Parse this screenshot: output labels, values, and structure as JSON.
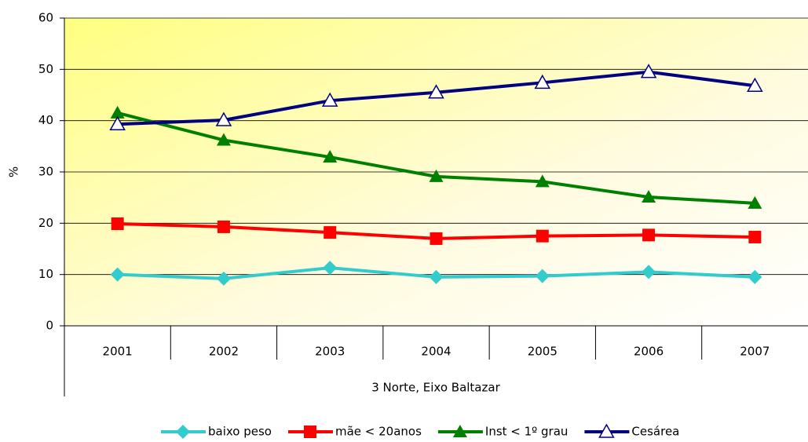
{
  "chart_data": {
    "type": "line",
    "ylabel": "%",
    "xlabel": "3 Norte, Eixo Baltazar",
    "categories": [
      "2001",
      "2002",
      "2003",
      "2004",
      "2005",
      "2006",
      "2007"
    ],
    "series": [
      {
        "name": "baixo peso",
        "color": "#33cccc",
        "marker": "diamond",
        "values": [
          10,
          9.2,
          11.3,
          9.5,
          9.7,
          10.5,
          9.5
        ]
      },
      {
        "name": "mãe < 20anos",
        "color": "#ff0000",
        "marker": "square",
        "values": [
          19.9,
          19.3,
          18.2,
          17,
          17.5,
          17.7,
          17.3
        ]
      },
      {
        "name": "Inst < 1º grau",
        "color": "#008000",
        "marker": "triangle",
        "values": [
          41.5,
          36.2,
          32.9,
          29.1,
          28.1,
          25.1,
          23.9
        ]
      },
      {
        "name": "Cesárea",
        "color": "#000080",
        "marker": "triangle-open",
        "values": [
          39.3,
          40.1,
          43.9,
          45.5,
          47.4,
          49.5,
          46.8
        ]
      }
    ],
    "ylim": [
      0,
      60
    ],
    "yticks": [
      0,
      10,
      20,
      30,
      40,
      50,
      60
    ],
    "grid": true,
    "legend": "bottom"
  }
}
